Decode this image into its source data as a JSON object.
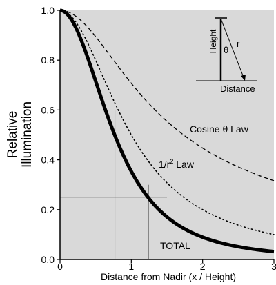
{
  "chart_data": {
    "type": "line",
    "xlabel": "Distance from Nadir (x / Height)",
    "ylabel": "Relative\nIllumination",
    "xlim": [
      0,
      3
    ],
    "ylim": [
      0,
      1.0
    ],
    "x_ticks": [
      "0",
      "1",
      "2",
      "3"
    ],
    "y_ticks": [
      "0.0",
      "0.2",
      "0.4",
      "0.6",
      "0.8",
      "1.0"
    ],
    "x_tick_values": [
      0,
      1,
      2,
      3
    ],
    "y_tick_values": [
      0,
      0.2,
      0.4,
      0.6,
      0.8,
      1.0
    ],
    "grid": false,
    "background": "#d9d9d9",
    "series": [
      {
        "name": "Cosine θ Law",
        "style": "dashed",
        "x": [
          0,
          0.25,
          0.5,
          0.75,
          1.0,
          1.25,
          1.5,
          2.0,
          2.5,
          3.0
        ],
        "y": [
          1.0,
          0.97,
          0.894,
          0.8,
          0.707,
          0.625,
          0.555,
          0.447,
          0.371,
          0.316
        ]
      },
      {
        "name": "1/r² Law",
        "style": "dotted",
        "x": [
          0,
          0.25,
          0.5,
          0.75,
          1.0,
          1.25,
          1.5,
          2.0,
          2.5,
          3.0
        ],
        "y": [
          1.0,
          0.941,
          0.8,
          0.64,
          0.5,
          0.39,
          0.308,
          0.2,
          0.138,
          0.1
        ]
      },
      {
        "name": "TOTAL",
        "style": "thick",
        "x": [
          0,
          0.25,
          0.5,
          0.75,
          1.0,
          1.25,
          1.5,
          2.0,
          2.5,
          3.0
        ],
        "y": [
          1.0,
          0.913,
          0.716,
          0.512,
          0.354,
          0.244,
          0.171,
          0.089,
          0.051,
          0.032
        ]
      }
    ],
    "annotations": {
      "cosine_label": "Cosine θ Law",
      "inverse_square_label": "1/r",
      "inverse_square_sup": "2",
      "inverse_square_suffix": " Law",
      "total_label": "TOTAL",
      "reference_lines": [
        {
          "level": 0.5,
          "x": 0.77
        },
        {
          "level": 0.25,
          "x": 1.24
        }
      ]
    },
    "inset": {
      "height_label": "Height",
      "theta_label": "θ",
      "r_label": "r",
      "distance_label": "Distance"
    }
  }
}
